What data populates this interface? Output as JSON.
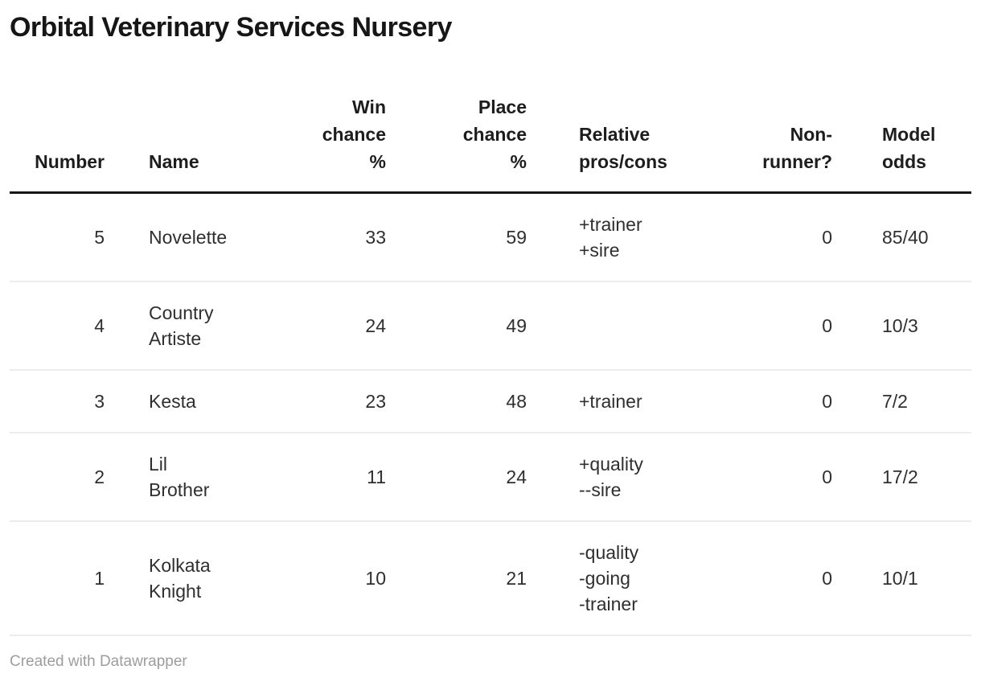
{
  "title": "Orbital Veterinary Services Nursery",
  "footer": {
    "credit": "Created with Datawrapper"
  },
  "colors": {
    "background": "#ffffff",
    "title_text": "#161616",
    "header_text": "#1d1d1d",
    "body_text": "#2f2f2f",
    "header_rule": "#161616",
    "row_divider": "#ececec",
    "footer_text": "#9d9d9d"
  },
  "chart_data": {
    "type": "table",
    "title": "Orbital Veterinary Services Nursery",
    "columns": [
      {
        "key": "number",
        "label": "Number",
        "align": "right"
      },
      {
        "key": "name",
        "label": "Name",
        "align": "left"
      },
      {
        "key": "win-chance",
        "label": "Win\nchance\n%",
        "align": "right"
      },
      {
        "key": "place-chance",
        "label": "Place\nchance\n%",
        "align": "right"
      },
      {
        "key": "pros-cons",
        "label": "Relative\npros/cons",
        "align": "left"
      },
      {
        "key": "non-runner",
        "label": "Non-\nrunner?",
        "align": "right"
      },
      {
        "key": "model-odds",
        "label": "Model\nodds",
        "align": "left"
      }
    ],
    "rows": [
      [
        "5",
        "Novelette",
        "33",
        "59",
        "+trainer\n+sire",
        "0",
        "85/40"
      ],
      [
        "4",
        "Country\nArtiste",
        "24",
        "49",
        "",
        "0",
        "10/3"
      ],
      [
        "3",
        "Kesta",
        "23",
        "48",
        "+trainer",
        "0",
        "7/2"
      ],
      [
        "2",
        "Lil\nBrother",
        "11",
        "24",
        "+quality\n--sire",
        "0",
        "17/2"
      ],
      [
        "1",
        "Kolkata\nKnight",
        "10",
        "21",
        "-quality\n-going\n-trainer",
        "0",
        "10/1"
      ]
    ]
  }
}
